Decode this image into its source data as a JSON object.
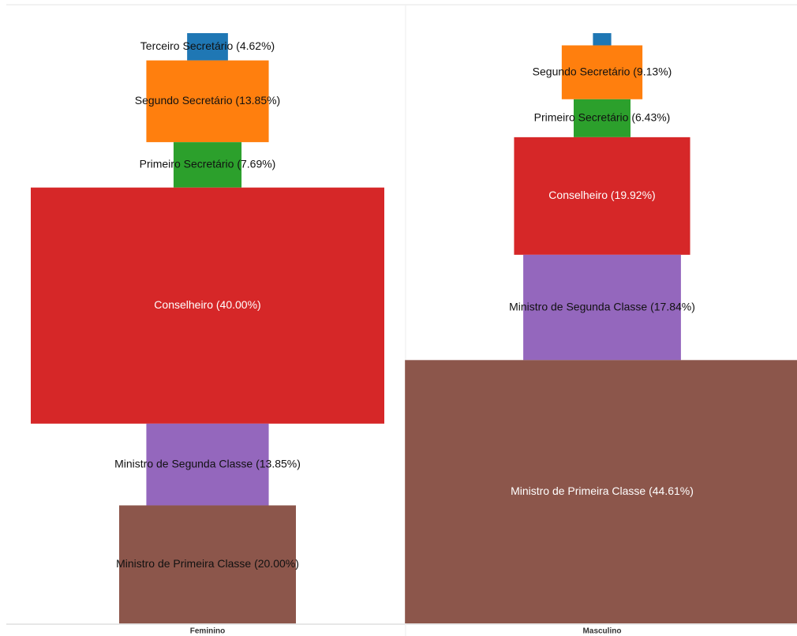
{
  "chart_data": {
    "type": "mosaic",
    "categories": [
      "Feminino",
      "Masculino"
    ],
    "series": [
      {
        "color": "#1f77b4",
        "values": [
          4.62,
          2.07
        ],
        "value_labels": [
          "Terceiro Secretário (4.62%)",
          null
        ]
      },
      {
        "color": "#ff7f0e",
        "values": [
          13.85,
          9.13
        ],
        "value_labels": [
          "Segundo Secretário (13.85%)",
          "Segundo Secretário (9.13%)"
        ]
      },
      {
        "color": "#2ca02c",
        "values": [
          7.69,
          6.43
        ],
        "value_labels": [
          "Primeiro Secretário (7.69%)",
          "Primeiro Secretário (6.43%)"
        ]
      },
      {
        "color": "#d62728",
        "values": [
          40.0,
          19.92
        ],
        "value_labels": [
          "Conselheiro (40.00%)",
          "Conselheiro (19.92%)"
        ]
      },
      {
        "color": "#9467bd",
        "values": [
          13.85,
          17.84
        ],
        "value_labels": [
          "Ministro de Segunda Classe (13.85%)",
          "Ministro de Segunda Classe (17.84%)"
        ]
      },
      {
        "color": "#8c564b",
        "values": [
          20.0,
          44.61
        ],
        "value_labels": [
          "Ministro de Primeira Classe (20.00%)",
          "Ministro de Primeira Classe (44.61%)"
        ]
      }
    ]
  }
}
